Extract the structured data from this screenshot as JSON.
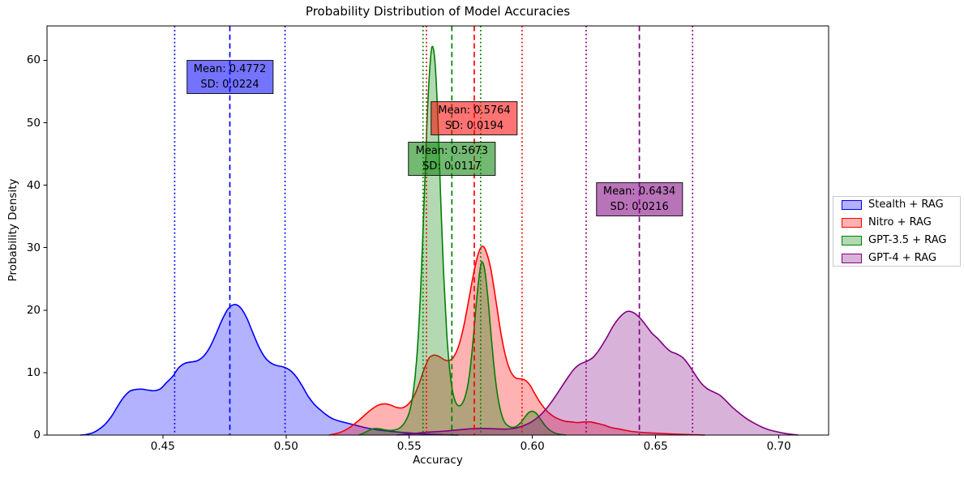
{
  "chart_data": {
    "type": "area",
    "subtype": "kde-distributions",
    "title": "Probability Distribution of Model Accuracies",
    "xlabel": "Accuracy",
    "ylabel": "Probability Density",
    "xlim": [
      0.403,
      0.7202
    ],
    "ylim": [
      0,
      65.5
    ],
    "grid": false,
    "xticks": [
      0.45,
      0.5,
      0.55,
      0.6,
      0.65,
      0.7
    ],
    "xtick_labels": [
      "0.45",
      "0.50",
      "0.55",
      "0.60",
      "0.65",
      "0.70"
    ],
    "yticks": [
      0,
      10,
      20,
      30,
      40,
      50,
      60
    ],
    "ytick_labels": [
      "0",
      "10",
      "20",
      "30",
      "40",
      "50",
      "60"
    ],
    "legend": {
      "position": "center-right-outside",
      "entries": [
        "Stealth + RAG",
        "Nitro + RAG",
        "GPT-3.5 + RAG",
        "GPT-4 + RAG"
      ]
    },
    "series": [
      {
        "name": "Stealth + RAG",
        "color": "#0000ff",
        "mean": 0.4772,
        "sd": 0.0224,
        "mean_line": "dashed",
        "sd_lines": "dotted",
        "annotation": {
          "line1": "Mean: 0.4772",
          "line2": "SD: 0.0224",
          "center_density": 57.3
        },
        "points": [
          [
            0.4165,
            0
          ],
          [
            0.419,
            0.1
          ],
          [
            0.4215,
            0.35
          ],
          [
            0.424,
            0.9
          ],
          [
            0.4265,
            1.7
          ],
          [
            0.429,
            2.9
          ],
          [
            0.4315,
            4.5
          ],
          [
            0.434,
            6.0
          ],
          [
            0.4365,
            7.0
          ],
          [
            0.439,
            7.3
          ],
          [
            0.4415,
            7.35
          ],
          [
            0.444,
            7.2
          ],
          [
            0.4465,
            7.1
          ],
          [
            0.449,
            7.4
          ],
          [
            0.4515,
            8.4
          ],
          [
            0.454,
            9.4
          ],
          [
            0.4565,
            10.8
          ],
          [
            0.459,
            11.5
          ],
          [
            0.4615,
            11.7
          ],
          [
            0.464,
            11.9
          ],
          [
            0.4665,
            12.6
          ],
          [
            0.469,
            14.0
          ],
          [
            0.4715,
            16.1
          ],
          [
            0.474,
            18.4
          ],
          [
            0.4765,
            20.2
          ],
          [
            0.479,
            20.9
          ],
          [
            0.4815,
            20.4
          ],
          [
            0.484,
            18.8
          ],
          [
            0.4865,
            16.4
          ],
          [
            0.489,
            14.1
          ],
          [
            0.4915,
            12.4
          ],
          [
            0.494,
            11.5
          ],
          [
            0.4965,
            11.1
          ],
          [
            0.499,
            10.9
          ],
          [
            0.5015,
            10.4
          ],
          [
            0.504,
            9.4
          ],
          [
            0.5065,
            7.9
          ],
          [
            0.509,
            6.2
          ],
          [
            0.5115,
            4.9
          ],
          [
            0.514,
            4.0
          ],
          [
            0.5165,
            3.2
          ],
          [
            0.519,
            2.6
          ],
          [
            0.522,
            2.2
          ],
          [
            0.525,
            1.9
          ],
          [
            0.528,
            1.6
          ],
          [
            0.532,
            1.2
          ],
          [
            0.536,
            0.9
          ],
          [
            0.54,
            0.7
          ],
          [
            0.545,
            0.5
          ],
          [
            0.55,
            0.35
          ],
          [
            0.555,
            0.2
          ],
          [
            0.56,
            0.1
          ],
          [
            0.565,
            0.04
          ],
          [
            0.57,
            0
          ]
        ]
      },
      {
        "name": "Nitro + RAG",
        "color": "#ff0000",
        "mean": 0.5764,
        "sd": 0.0194,
        "mean_line": "dashed",
        "sd_lines": "dotted",
        "annotation": {
          "line1": "Mean: 0.5764",
          "line2": "SD: 0.0194",
          "center_density": 50.7
        },
        "points": [
          [
            0.5175,
            0
          ],
          [
            0.52,
            0.2
          ],
          [
            0.5225,
            0.5
          ],
          [
            0.525,
            1.0
          ],
          [
            0.5275,
            1.7
          ],
          [
            0.53,
            2.5
          ],
          [
            0.5325,
            3.4
          ],
          [
            0.535,
            4.2
          ],
          [
            0.5375,
            4.8
          ],
          [
            0.54,
            5.0
          ],
          [
            0.5425,
            4.8
          ],
          [
            0.545,
            4.4
          ],
          [
            0.5475,
            4.4
          ],
          [
            0.55,
            5.1
          ],
          [
            0.552,
            6.3
          ],
          [
            0.554,
            8.2
          ],
          [
            0.556,
            10.5
          ],
          [
            0.558,
            12.3
          ],
          [
            0.56,
            12.8
          ],
          [
            0.562,
            12.6
          ],
          [
            0.564,
            12.1
          ],
          [
            0.566,
            11.9
          ],
          [
            0.568,
            12.5
          ],
          [
            0.57,
            14.2
          ],
          [
            0.572,
            17.2
          ],
          [
            0.574,
            21.3
          ],
          [
            0.576,
            25.6
          ],
          [
            0.578,
            29.0
          ],
          [
            0.5795,
            30.2
          ],
          [
            0.581,
            29.6
          ],
          [
            0.583,
            26.8
          ],
          [
            0.585,
            22.0
          ],
          [
            0.587,
            16.8
          ],
          [
            0.589,
            12.8
          ],
          [
            0.591,
            10.3
          ],
          [
            0.593,
            9.2
          ],
          [
            0.595,
            9.0
          ],
          [
            0.597,
            8.8
          ],
          [
            0.599,
            8.0
          ],
          [
            0.601,
            6.6
          ],
          [
            0.6035,
            5.0
          ],
          [
            0.606,
            3.8
          ],
          [
            0.6085,
            3.0
          ],
          [
            0.611,
            2.5
          ],
          [
            0.6135,
            2.2
          ],
          [
            0.616,
            2.1
          ],
          [
            0.6185,
            2.0
          ],
          [
            0.621,
            2.1
          ],
          [
            0.6235,
            2.1
          ],
          [
            0.626,
            1.9
          ],
          [
            0.629,
            1.6
          ],
          [
            0.632,
            1.2
          ],
          [
            0.636,
            0.9
          ],
          [
            0.64,
            0.6
          ],
          [
            0.645,
            0.4
          ],
          [
            0.65,
            0.3
          ],
          [
            0.655,
            0.2
          ],
          [
            0.66,
            0.12
          ],
          [
            0.665,
            0.06
          ],
          [
            0.67,
            0
          ]
        ]
      },
      {
        "name": "GPT-3.5 + RAG",
        "color": "#008000",
        "mean": 0.5673,
        "sd": 0.0117,
        "mean_line": "dashed",
        "sd_lines": "dotted",
        "annotation": {
          "line1": "Mean: 0.5673",
          "line2": "SD: 0.0117",
          "center_density": 44.2
        },
        "points": [
          [
            0.5295,
            0
          ],
          [
            0.532,
            0.4
          ],
          [
            0.5345,
            0.9
          ],
          [
            0.536,
            1.05
          ],
          [
            0.538,
            1.0
          ],
          [
            0.54,
            0.85
          ],
          [
            0.542,
            0.75
          ],
          [
            0.544,
            0.8
          ],
          [
            0.546,
            1.1
          ],
          [
            0.548,
            1.9
          ],
          [
            0.55,
            3.6
          ],
          [
            0.5515,
            6.5
          ],
          [
            0.553,
            12.0
          ],
          [
            0.5545,
            22.0
          ],
          [
            0.556,
            37.0
          ],
          [
            0.5572,
            50.0
          ],
          [
            0.5583,
            58.5
          ],
          [
            0.5593,
            62.2
          ],
          [
            0.5605,
            59.5
          ],
          [
            0.5617,
            50.0
          ],
          [
            0.5628,
            37.5
          ],
          [
            0.564,
            25.5
          ],
          [
            0.5652,
            16.5
          ],
          [
            0.5664,
            10.5
          ],
          [
            0.5676,
            7.0
          ],
          [
            0.5688,
            5.3
          ],
          [
            0.57,
            4.7
          ],
          [
            0.5712,
            4.9
          ],
          [
            0.5724,
            5.8
          ],
          [
            0.5736,
            7.6
          ],
          [
            0.5748,
            10.8
          ],
          [
            0.576,
            15.5
          ],
          [
            0.5772,
            21.0
          ],
          [
            0.5784,
            25.5
          ],
          [
            0.5794,
            27.7
          ],
          [
            0.5806,
            26.5
          ],
          [
            0.5818,
            22.5
          ],
          [
            0.583,
            17.0
          ],
          [
            0.5842,
            11.8
          ],
          [
            0.5854,
            7.6
          ],
          [
            0.5866,
            4.7
          ],
          [
            0.5878,
            2.9
          ],
          [
            0.589,
            1.9
          ],
          [
            0.591,
            1.3
          ],
          [
            0.593,
            1.3
          ],
          [
            0.595,
            1.9
          ],
          [
            0.597,
            2.9
          ],
          [
            0.5985,
            3.6
          ],
          [
            0.6,
            3.8
          ],
          [
            0.6015,
            3.5
          ],
          [
            0.603,
            2.7
          ],
          [
            0.605,
            1.6
          ],
          [
            0.607,
            0.8
          ],
          [
            0.609,
            0.35
          ],
          [
            0.611,
            0.12
          ],
          [
            0.6135,
            0
          ]
        ]
      },
      {
        "name": "GPT-4 + RAG",
        "color": "#800080",
        "mean": 0.6434,
        "sd": 0.0216,
        "mean_line": "dashed",
        "sd_lines": "dotted",
        "annotation": {
          "line1": "Mean: 0.6434",
          "line2": "SD: 0.0216",
          "center_density": 37.7
        },
        "points": [
          [
            0.545,
            0
          ],
          [
            0.549,
            0.15
          ],
          [
            0.553,
            0.3
          ],
          [
            0.557,
            0.45
          ],
          [
            0.561,
            0.55
          ],
          [
            0.565,
            0.65
          ],
          [
            0.569,
            0.8
          ],
          [
            0.573,
            0.95
          ],
          [
            0.577,
            1.05
          ],
          [
            0.581,
            1.05
          ],
          [
            0.585,
            1.0
          ],
          [
            0.589,
            0.95
          ],
          [
            0.593,
            1.1
          ],
          [
            0.597,
            1.6
          ],
          [
            0.6,
            2.2
          ],
          [
            0.6035,
            3.3
          ],
          [
            0.607,
            4.9
          ],
          [
            0.6105,
            6.9
          ],
          [
            0.614,
            9.0
          ],
          [
            0.617,
            10.6
          ],
          [
            0.6195,
            11.4
          ],
          [
            0.622,
            11.8
          ],
          [
            0.6245,
            12.4
          ],
          [
            0.627,
            13.6
          ],
          [
            0.63,
            15.5
          ],
          [
            0.633,
            17.6
          ],
          [
            0.636,
            19.1
          ],
          [
            0.6385,
            19.8
          ],
          [
            0.641,
            19.6
          ],
          [
            0.6435,
            18.8
          ],
          [
            0.646,
            17.6
          ],
          [
            0.6485,
            16.3
          ],
          [
            0.651,
            15.4
          ],
          [
            0.6535,
            14.3
          ],
          [
            0.656,
            13.4
          ],
          [
            0.6585,
            13.0
          ],
          [
            0.661,
            12.4
          ],
          [
            0.6635,
            11.2
          ],
          [
            0.666,
            9.7
          ],
          [
            0.6685,
            8.3
          ],
          [
            0.671,
            7.4
          ],
          [
            0.6735,
            6.9
          ],
          [
            0.676,
            6.4
          ],
          [
            0.6785,
            5.5
          ],
          [
            0.681,
            4.5
          ],
          [
            0.684,
            3.5
          ],
          [
            0.687,
            2.6
          ],
          [
            0.69,
            1.9
          ],
          [
            0.693,
            1.3
          ],
          [
            0.696,
            0.85
          ],
          [
            0.699,
            0.55
          ],
          [
            0.702,
            0.3
          ],
          [
            0.705,
            0.12
          ],
          [
            0.708,
            0
          ]
        ]
      }
    ]
  }
}
